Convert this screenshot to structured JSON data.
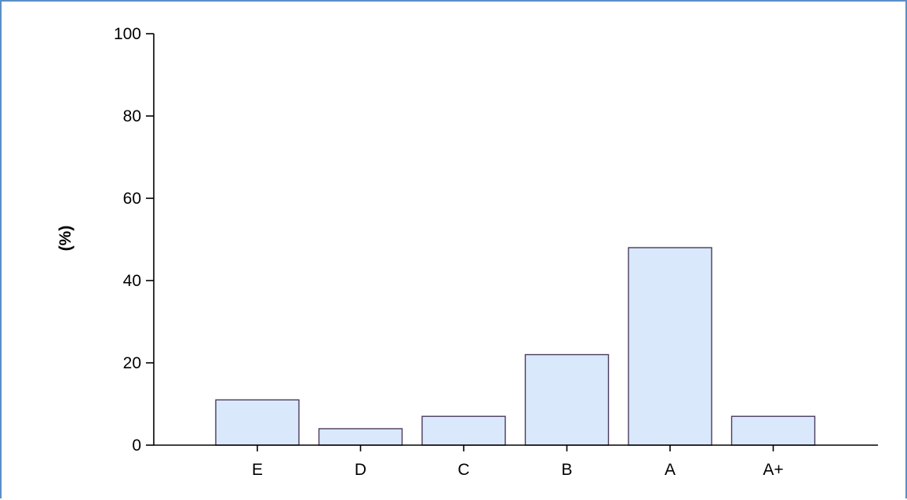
{
  "chart_data": {
    "type": "bar",
    "categories": [
      "E",
      "D",
      "C",
      "B",
      "A",
      "A+"
    ],
    "values": [
      11,
      4,
      7,
      22,
      48,
      7
    ],
    "title": "",
    "xlabel": "",
    "ylabel": "(%)",
    "ylim": [
      0,
      100
    ],
    "yticks": [
      0,
      20,
      40,
      60,
      80,
      100
    ],
    "grid": false,
    "legend": "none",
    "colors": {
      "bar_fill": "#d9e8fb",
      "bar_stroke": "#4b3b5e",
      "axis": "#000000",
      "frame_border": "#5b8fc7"
    }
  }
}
